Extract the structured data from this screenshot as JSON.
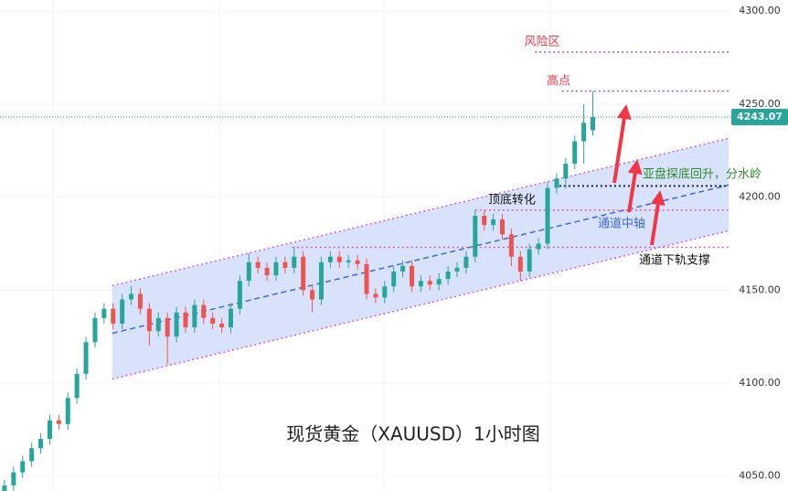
{
  "chart_data": {
    "type": "candlestick",
    "title": "现货黄金（XAUUSD）1小时图",
    "xlim": [
      -0.5,
      80.3
    ],
    "ylim": [
      4042,
      4306
    ],
    "yticks": [
      {
        "value": 4050,
        "label": "4050.00"
      },
      {
        "value": 4100,
        "label": "4100.00"
      },
      {
        "value": 4150,
        "label": "4150.00"
      },
      {
        "value": 4200,
        "label": "4200.00"
      },
      {
        "value": 4250,
        "label": "4250.00"
      },
      {
        "value": 4300,
        "label": "4300.00"
      }
    ],
    "grid": true,
    "up_color": "#26a69a",
    "down_color": "#ef5350",
    "open": [
      4040,
      4045,
      4052,
      4058,
      4065,
      4070,
      4080,
      4078,
      4092,
      4105,
      4122,
      4135,
      4140,
      4132,
      4145,
      4148,
      4140,
      4128,
      4135,
      4125,
      4138,
      4130,
      4142,
      4135,
      4132,
      4130,
      4140,
      4155,
      4165,
      4162,
      4158,
      4165,
      4162,
      4168,
      4150,
      4145,
      4165,
      4168,
      4165,
      4166,
      4164,
      4148,
      4146,
      4152,
      4160,
      4163,
      4152,
      4155,
      4153,
      4156,
      4160,
      4162,
      4168,
      4190,
      4185,
      4188,
      4180,
      4168,
      4160,
      4172,
      4175,
      4205,
      4210,
      4218,
      4230,
      4236
    ],
    "high": [
      4048,
      4055,
      4061,
      4068,
      4073,
      4083,
      4083,
      4095,
      4108,
      4125,
      4138,
      4143,
      4143,
      4148,
      4152,
      4151,
      4143,
      4138,
      4138,
      4141,
      4141,
      4145,
      4145,
      4138,
      4135,
      4143,
      4158,
      4170,
      4168,
      4165,
      4168,
      4168,
      4173,
      4171,
      4153,
      4168,
      4171,
      4171,
      4169,
      4169,
      4167,
      4151,
      4155,
      4163,
      4166,
      4166,
      4158,
      4158,
      4159,
      4163,
      4165,
      4171,
      4193,
      4193,
      4191,
      4191,
      4183,
      4171,
      4175,
      4178,
      4208,
      4213,
      4221,
      4233,
      4250,
      4257
    ],
    "low": [
      4037,
      4042,
      4049,
      4055,
      4062,
      4067,
      4075,
      4075,
      4089,
      4102,
      4119,
      4132,
      4129,
      4129,
      4142,
      4137,
      4120,
      4125,
      4110,
      4122,
      4127,
      4127,
      4132,
      4129,
      4127,
      4127,
      4137,
      4152,
      4159,
      4155,
      4155,
      4159,
      4159,
      4147,
      4138,
      4142,
      4162,
      4162,
      4162,
      4161,
      4145,
      4143,
      4143,
      4149,
      4157,
      4149,
      4149,
      4150,
      4150,
      4153,
      4157,
      4159,
      4165,
      4182,
      4182,
      4177,
      4163,
      4155,
      4157,
      4169,
      4172,
      4202,
      4205,
      4215,
      4218,
      4233
    ],
    "close": [
      4045,
      4052,
      4058,
      4065,
      4070,
      4080,
      4078,
      4092,
      4105,
      4122,
      4135,
      4140,
      4132,
      4145,
      4148,
      4140,
      4128,
      4135,
      4125,
      4138,
      4130,
      4142,
      4135,
      4132,
      4130,
      4140,
      4155,
      4165,
      4162,
      4158,
      4165,
      4162,
      4168,
      4150,
      4145,
      4165,
      4168,
      4165,
      4166,
      4164,
      4148,
      4146,
      4152,
      4160,
      4163,
      4152,
      4155,
      4153,
      4156,
      4160,
      4162,
      4168,
      4190,
      4185,
      4188,
      4180,
      4168,
      4160,
      4172,
      4175,
      4205,
      4210,
      4218,
      4230,
      4240,
      4243.07
    ],
    "last_price": 4243.07,
    "channel": {
      "x": [
        11.9,
        80
      ],
      "upper": [
        4152.4,
        4231.6
      ],
      "middle": [
        4126.8,
        4206.5
      ],
      "lower": [
        4102.2,
        4181.9
      ],
      "fill": "#d4e0fb",
      "edge_color": "#d35ce8",
      "middle_color": "#3d6ad6"
    },
    "hlines": [
      {
        "value": 4278,
        "from": 58.6,
        "to": 80,
        "color": "#b04fe0"
      },
      {
        "value": 4257,
        "from": 61.6,
        "to": 80,
        "color": "#b04fe0"
      },
      {
        "value": 4206,
        "from": 61.3,
        "to": 80,
        "color": "#222222"
      },
      {
        "value": 4193,
        "from": 52,
        "to": 80,
        "color": "#e75ab0"
      },
      {
        "value": 4173,
        "from": 31.8,
        "to": 80,
        "color": "#e75ab0"
      }
    ],
    "annotations": [
      {
        "text": "风险区",
        "color": "#f23645"
      },
      {
        "text": "高点",
        "color": "#f23645"
      },
      {
        "text": "顶底转化",
        "color": "#111111"
      },
      {
        "text": "亚盘探底回升，分水岭",
        "color": "#2e8b2e"
      },
      {
        "text": "通道中轴",
        "color": "#3d6ad6"
      },
      {
        "text": "通道下轨支撑",
        "color": "#111111"
      }
    ]
  }
}
